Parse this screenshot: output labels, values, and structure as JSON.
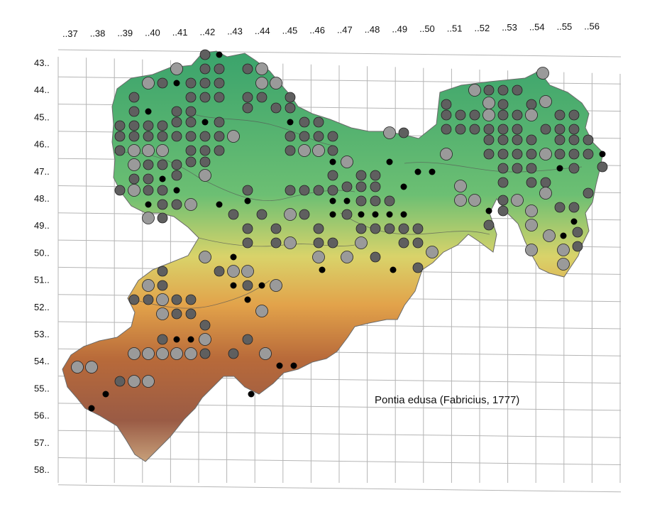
{
  "map": {
    "species_label": "Pontia edusa (Fabricius, 1777)",
    "column_labels": [
      "..37",
      "..38",
      "..39",
      "..40",
      "..41",
      "..42",
      "..43",
      "..44",
      "..45",
      "..46",
      "..47",
      "..48",
      "..49",
      "..50",
      "..51",
      "..52",
      "..53",
      "..54",
      "..55",
      "..56"
    ],
    "row_labels": [
      "43..",
      "44..",
      "45..",
      "46..",
      "47..",
      "48..",
      "49..",
      "50..",
      "51..",
      "52..",
      "53..",
      "54..",
      "55..",
      "56..",
      "57..",
      "58.."
    ],
    "colors": {
      "lowland_green": "#4fb07a",
      "hills_yellow": "#e9d76a",
      "mountains_orange": "#d88a3c",
      "peaks_brown": "#9e5a3a",
      "grid": "#b5b5b5",
      "record_old": "#9a9a9a",
      "record_mid": "#5f5f5f",
      "record_recent": "#000000"
    }
  }
}
